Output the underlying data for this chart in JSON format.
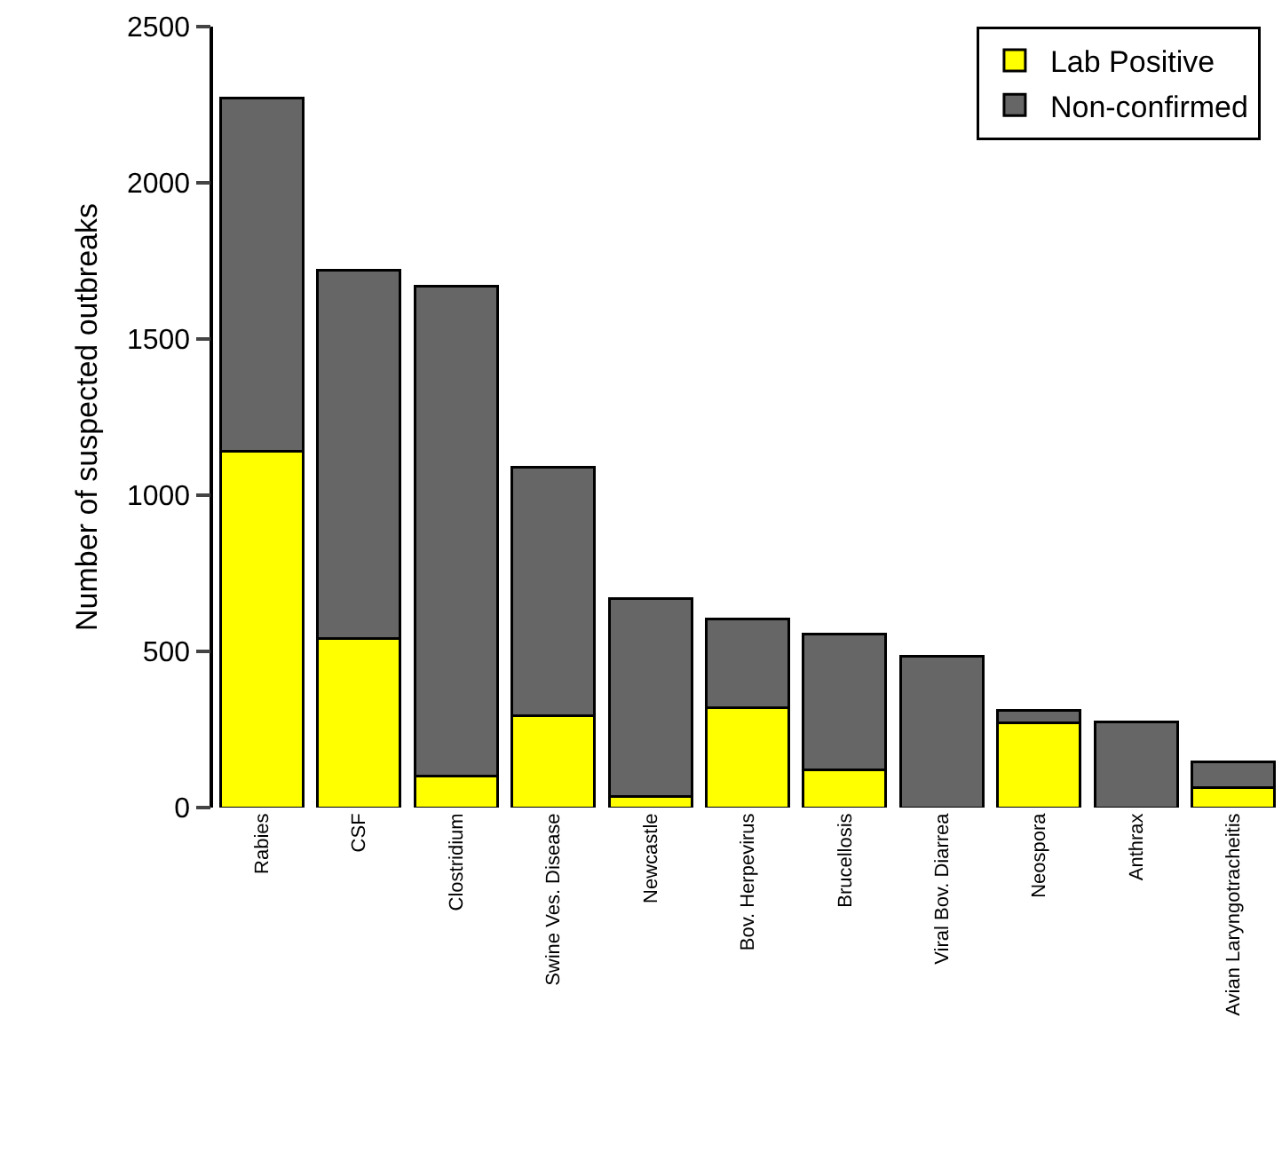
{
  "chart_data": {
    "type": "bar",
    "stacked": true,
    "ylabel": "Number of suspected outbreaks",
    "categories": [
      "Rabies",
      "CSF",
      "Clostridium",
      "Swine Ves. Disease",
      "Newcastle",
      "Bov. Herpevirus",
      "Brucellosis",
      "Viral Bov. Diarrea",
      "Neospora",
      "Anthrax",
      "Avian Laryngotracheitis"
    ],
    "series": [
      {
        "name": "Lab Positive",
        "color": "#ffff00",
        "values": [
          1140,
          540,
          100,
          295,
          35,
          320,
          120,
          null,
          270,
          null,
          65
        ]
      },
      {
        "name": "Non-confirmed",
        "color": "#666666",
        "values": [
          1130,
          1180,
          1570,
          795,
          635,
          285,
          435,
          485,
          40,
          275,
          80
        ]
      }
    ],
    "ylim": [
      0,
      2500
    ],
    "yticks": [
      0,
      500,
      1000,
      1500,
      2000,
      2500
    ],
    "grid": false,
    "legend": "top right"
  }
}
